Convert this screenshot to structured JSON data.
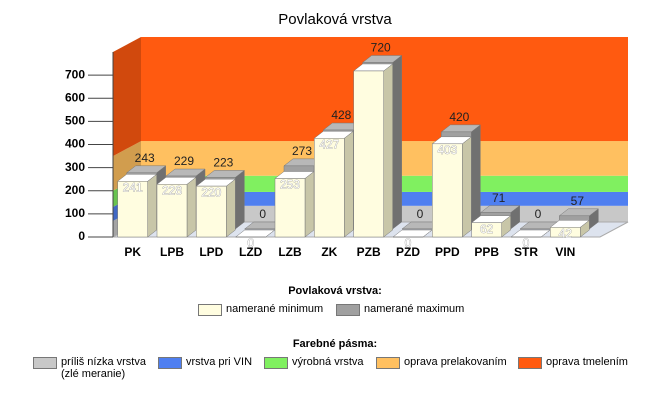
{
  "chart_data": {
    "type": "bar3d",
    "title": "Povlaková vrstva",
    "categories": [
      "PK",
      "LPB",
      "LPD",
      "LZD",
      "LZB",
      "ZK",
      "PZB",
      "PZD",
      "PPD",
      "PPB",
      "STR",
      "VIN"
    ],
    "series": [
      {
        "name": "namerané minimum",
        "color": "#fffde0",
        "values": [
          241,
          228,
          220,
          0,
          253,
          427,
          718,
          0,
          403,
          62,
          0,
          42
        ],
        "value_labels": [
          "241",
          "228",
          "220",
          "0",
          "253",
          "427",
          null,
          "0",
          "403",
          "62",
          "0",
          "42"
        ]
      },
      {
        "name": "namerané maximum",
        "color": "#a0a0a0",
        "values": [
          243,
          229,
          223,
          0,
          273,
          428,
          720,
          0,
          420,
          71,
          0,
          57
        ]
      }
    ],
    "legend_title": "Povlaková vrstva:",
    "bands_title": "Farebné pásma:",
    "bands": [
      {
        "name": "príliš nízka vrstva (zlé meranie)",
        "color": "#c8c8c8",
        "from": 0,
        "to": 70
      },
      {
        "name": "vrstva pri VIN",
        "color": "#4f7ff0",
        "from": 70,
        "to": 130
      },
      {
        "name": "výrobná vrstva",
        "color": "#80f060",
        "from": 130,
        "to": 200
      },
      {
        "name": "oprava prelakovaním",
        "color": "#ffc060",
        "from": 200,
        "to": 350
      },
      {
        "name": "oprava tmelením",
        "color": "#ff5a10",
        "from": 350,
        "to": 800
      }
    ],
    "ylim": [
      0,
      800
    ],
    "yticks": [
      0,
      100,
      200,
      300,
      400,
      500,
      600,
      700
    ]
  }
}
